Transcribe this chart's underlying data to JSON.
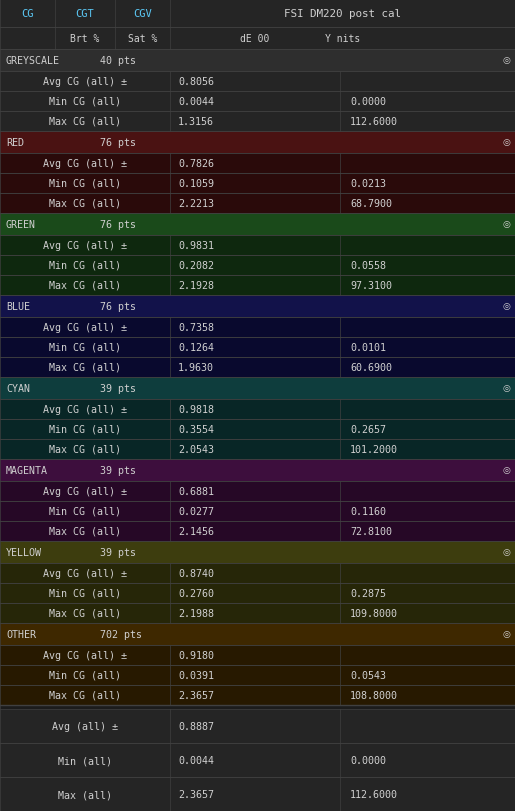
{
  "title": "FSI DM220 post cal",
  "sections": [
    {
      "label": "GREYSCALE",
      "pts": "40 pts",
      "header_bg": "#2e2e2e",
      "row_bg": "#252525",
      "rows": [
        {
          "label": "Avg CG (all) ±",
          "de": "0.8056",
          "ynits": ""
        },
        {
          "label": "Min CG (all)",
          "de": "0.0044",
          "ynits": "0.0000"
        },
        {
          "label": "Max CG (all)",
          "de": "1.3156",
          "ynits": "112.6000"
        }
      ]
    },
    {
      "label": "RED",
      "pts": "76 pts",
      "header_bg": "#4a1212",
      "row_bg": "#2a0a0a",
      "rows": [
        {
          "label": "Avg CG (all) ±",
          "de": "0.7826",
          "ynits": ""
        },
        {
          "label": "Min CG (all)",
          "de": "0.1059",
          "ynits": "0.0213"
        },
        {
          "label": "Max CG (all)",
          "de": "2.2213",
          "ynits": "68.7900"
        }
      ]
    },
    {
      "label": "GREEN",
      "pts": "76 pts",
      "header_bg": "#1a4a1a",
      "row_bg": "#0e280e",
      "rows": [
        {
          "label": "Avg CG (all) ±",
          "de": "0.9831",
          "ynits": ""
        },
        {
          "label": "Min CG (all)",
          "de": "0.2082",
          "ynits": "0.0558"
        },
        {
          "label": "Max CG (all)",
          "de": "2.1928",
          "ynits": "97.3100"
        }
      ]
    },
    {
      "label": "BLUE",
      "pts": "76 pts",
      "header_bg": "#12124a",
      "row_bg": "#09092e",
      "rows": [
        {
          "label": "Avg CG (all) ±",
          "de": "0.7358",
          "ynits": ""
        },
        {
          "label": "Min CG (all)",
          "de": "0.1264",
          "ynits": "0.0101"
        },
        {
          "label": "Max CG (all)",
          "de": "1.9630",
          "ynits": "60.6900"
        }
      ]
    },
    {
      "label": "CYAN",
      "pts": "39 pts",
      "header_bg": "#0e3d3d",
      "row_bg": "#082626",
      "rows": [
        {
          "label": "Avg CG (all) ±",
          "de": "0.9818",
          "ynits": ""
        },
        {
          "label": "Min CG (all)",
          "de": "0.3554",
          "ynits": "0.2657"
        },
        {
          "label": "Max CG (all)",
          "de": "2.0543",
          "ynits": "101.2000"
        }
      ]
    },
    {
      "label": "MAGENTA",
      "pts": "39 pts",
      "header_bg": "#3d0e3d",
      "row_bg": "#260826",
      "rows": [
        {
          "label": "Avg CG (all) ±",
          "de": "0.6881",
          "ynits": ""
        },
        {
          "label": "Min CG (all)",
          "de": "0.0277",
          "ynits": "0.1160"
        },
        {
          "label": "Max CG (all)",
          "de": "2.1456",
          "ynits": "72.8100"
        }
      ]
    },
    {
      "label": "YELLOW",
      "pts": "39 pts",
      "header_bg": "#3d3d0e",
      "row_bg": "#262608",
      "rows": [
        {
          "label": "Avg CG (all) ±",
          "de": "0.8740",
          "ynits": ""
        },
        {
          "label": "Min CG (all)",
          "de": "0.2760",
          "ynits": "0.2875"
        },
        {
          "label": "Max CG (all)",
          "de": "2.1988",
          "ynits": "109.8000"
        }
      ]
    },
    {
      "label": "OTHER",
      "pts": "702 pts",
      "header_bg": "#3e2800",
      "row_bg": "#271900",
      "rows": [
        {
          "label": "Avg CG (all) ±",
          "de": "0.9180",
          "ynits": ""
        },
        {
          "label": "Min CG (all)",
          "de": "0.0391",
          "ynits": "0.0543"
        },
        {
          "label": "Max CG (all)",
          "de": "2.3657",
          "ynits": "108.8000"
        }
      ]
    }
  ],
  "footer_rows": [
    {
      "label": "Avg (all) ±",
      "de": "0.8887",
      "ynits": ""
    },
    {
      "label": "Min (all)",
      "de": "0.0044",
      "ynits": "0.0000"
    },
    {
      "label": "Max (all)",
      "de": "2.3657",
      "ynits": "112.6000"
    }
  ],
  "bg_color": "#1c1c1c",
  "header_top_bg": "#252525",
  "footer_bg": "#252525",
  "text_color": "#d0d0d0",
  "blue_text": "#5bc8f5",
  "grid_color": "#404040",
  "fig_width": 5.15,
  "fig_height": 8.12,
  "dpi": 100
}
